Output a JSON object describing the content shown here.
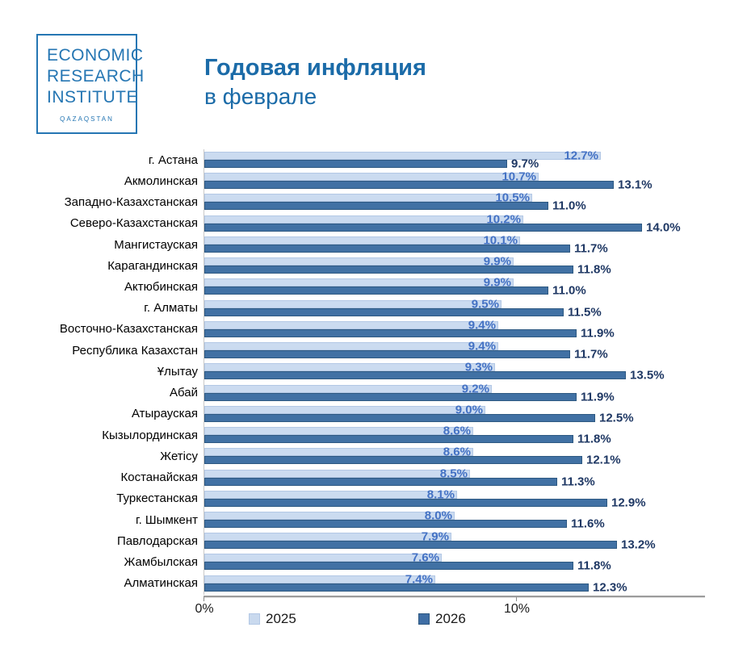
{
  "logo": {
    "lines": [
      "ECONOMIC",
      "RESEARCH",
      "INSTITUTE"
    ],
    "country": "QAZAQSTAN",
    "color": "#2576B3"
  },
  "title": {
    "line1": "Годовая инфляция",
    "line2": "в феврале",
    "color": "#1B6BA8"
  },
  "chart_data": {
    "type": "bar",
    "orientation": "horizontal",
    "title": "Годовая инфляция в феврале",
    "categories": [
      "г. Астана",
      "Акмолинская",
      "Западно-Казахстанская",
      "Северо-Казахстанская",
      "Мангистауская",
      "Карагандинская",
      "Актюбинская",
      "г. Алматы",
      "Восточно-Казахстанская",
      "Республика Казахстан",
      "Ұлытау",
      "Абай",
      "Атырауская",
      "Кызылординская",
      "Жетісу",
      "Костанайская",
      "Туркестанская",
      "г. Шымкент",
      "Павлодарская",
      "Жамбылская",
      "Алматинская"
    ],
    "series": [
      {
        "name": "2025",
        "color": "#CBDBF0",
        "label_color": "#4472C4",
        "values": [
          12.7,
          10.7,
          10.5,
          10.2,
          10.1,
          9.9,
          9.9,
          9.5,
          9.4,
          9.4,
          9.3,
          9.2,
          9.0,
          8.6,
          8.6,
          8.5,
          8.1,
          8.0,
          7.9,
          7.6,
          7.4
        ]
      },
      {
        "name": "2026",
        "color": "#4171A4",
        "label_color": "#1F3864",
        "values": [
          9.7,
          13.1,
          11.0,
          14.0,
          11.7,
          11.8,
          11.0,
          11.5,
          11.9,
          11.7,
          13.5,
          11.9,
          12.5,
          11.8,
          12.1,
          11.3,
          12.9,
          11.6,
          13.2,
          11.8,
          12.3
        ]
      }
    ],
    "xlim": [
      0,
      16
    ],
    "x_ticks": [
      {
        "value": 0,
        "label": "0%"
      },
      {
        "value": 10,
        "label": "10%"
      }
    ],
    "value_suffix": "%",
    "grid": false,
    "legend_position": "bottom"
  }
}
